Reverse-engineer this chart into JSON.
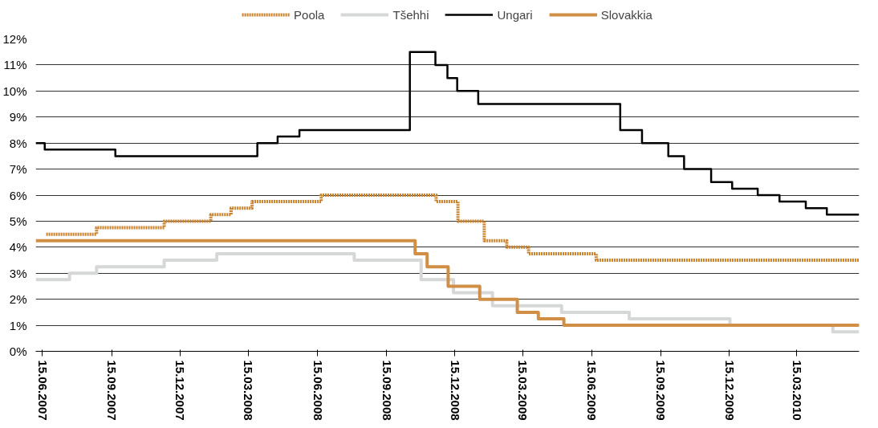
{
  "chart_data": {
    "type": "step",
    "xlim": [
      "2007-06-06",
      "2010-06-06"
    ],
    "xticks": [
      {
        "value": "2007-06-15",
        "label": "15.06.2007"
      },
      {
        "value": "2007-09-15",
        "label": "15.09.2007"
      },
      {
        "value": "2007-12-15",
        "label": "15.12.2007"
      },
      {
        "value": "2008-03-15",
        "label": "15.03.2008"
      },
      {
        "value": "2008-06-15",
        "label": "15.06.2008"
      },
      {
        "value": "2008-09-15",
        "label": "15.09.2008"
      },
      {
        "value": "2008-12-15",
        "label": "15.12.2008"
      },
      {
        "value": "2009-03-15",
        "label": "15.03.2009"
      },
      {
        "value": "2009-06-15",
        "label": "15.06.2009"
      },
      {
        "value": "2009-09-15",
        "label": "15.09.2009"
      },
      {
        "value": "2009-12-15",
        "label": "15.12.2009"
      },
      {
        "value": "2010-03-15",
        "label": "15.03.2010"
      }
    ],
    "ylim": [
      0,
      12
    ],
    "yticks": [
      {
        "value": 0,
        "label": "0%"
      },
      {
        "value": 1,
        "label": "1%"
      },
      {
        "value": 2,
        "label": "2%"
      },
      {
        "value": 3,
        "label": "3%"
      },
      {
        "value": 4,
        "label": "4%"
      },
      {
        "value": 5,
        "label": "5%"
      },
      {
        "value": 6,
        "label": "6%"
      },
      {
        "value": 7,
        "label": "7%"
      },
      {
        "value": 8,
        "label": "8%"
      },
      {
        "value": 9,
        "label": "9%"
      },
      {
        "value": 10,
        "label": "10%"
      },
      {
        "value": 11,
        "label": "11%"
      },
      {
        "value": 12,
        "label": "12%"
      }
    ],
    "grid": "y",
    "legend": "top",
    "series": [
      {
        "name": "Poola",
        "color": "#c8822d",
        "line_style": "dotted",
        "x": [
          "2007-06-20",
          "2007-08-26",
          "2007-11-24",
          "2008-01-25",
          "2008-02-21",
          "2008-03-20",
          "2008-06-20",
          "2008-11-20",
          "2008-12-19",
          "2009-01-23",
          "2009-02-22",
          "2009-03-23",
          "2009-06-21",
          "2010-06-06"
        ],
        "values": [
          4.5,
          4.75,
          5.0,
          5.25,
          5.5,
          5.75,
          6.0,
          5.75,
          5.0,
          4.25,
          4.0,
          3.75,
          3.5,
          3.5
        ]
      },
      {
        "name": "Tšehhi",
        "color": "#d5d8d7",
        "line_style": "solid",
        "x": [
          "2007-06-06",
          "2007-07-21",
          "2007-08-26",
          "2007-11-24",
          "2008-02-02",
          "2008-08-03",
          "2008-10-31",
          "2008-12-13",
          "2009-02-03",
          "2009-05-06",
          "2009-08-04",
          "2009-12-16",
          "2010-05-02",
          "2010-06-06"
        ],
        "values": [
          2.75,
          3.0,
          3.25,
          3.5,
          3.75,
          3.5,
          2.75,
          2.25,
          1.75,
          1.5,
          1.25,
          1.0,
          0.75,
          0.75
        ]
      },
      {
        "name": "Ungari",
        "color": "#000000",
        "line_style": "solid",
        "x": [
          "2007-06-06",
          "2007-06-18",
          "2007-09-20",
          "2008-03-27",
          "2008-04-23",
          "2008-05-22",
          "2008-10-16",
          "2008-11-19",
          "2008-12-05",
          "2008-12-18",
          "2009-01-15",
          "2009-07-23",
          "2009-08-21",
          "2009-09-25",
          "2009-10-16",
          "2009-11-21",
          "2009-12-19",
          "2010-01-22",
          "2010-02-20",
          "2010-03-27",
          "2010-04-24",
          "2010-06-06"
        ],
        "values": [
          8.0,
          7.75,
          7.5,
          8.0,
          8.25,
          8.5,
          11.5,
          11.0,
          10.5,
          10.0,
          9.5,
          8.5,
          8.0,
          7.5,
          7.0,
          6.5,
          6.25,
          6.0,
          5.75,
          5.5,
          5.25,
          5.25
        ]
      },
      {
        "name": "Slovakkia",
        "color": "#d08f45",
        "line_style": "solid",
        "x": [
          "2007-06-06",
          "2008-10-23",
          "2008-11-08",
          "2008-12-06",
          "2009-01-17",
          "2009-03-08",
          "2009-04-05",
          "2009-05-09",
          "2010-06-06"
        ],
        "values": [
          4.25,
          3.75,
          3.25,
          2.5,
          2.0,
          1.5,
          1.25,
          1.0,
          1.0
        ]
      }
    ]
  }
}
